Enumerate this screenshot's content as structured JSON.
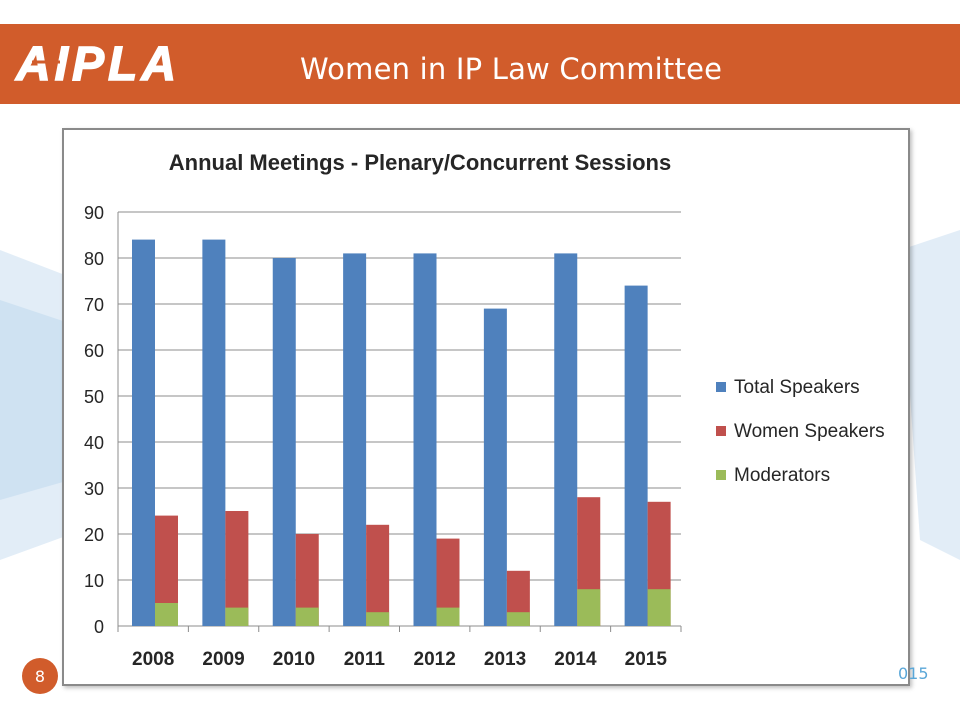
{
  "header": {
    "logo_text": "AIPLA",
    "title": "Women in IP Law Committee"
  },
  "footer": {
    "page_number": "8",
    "year_fragment": "015"
  },
  "colors": {
    "header_bg": "#d15c2b",
    "total_speakers": "#4f81bd",
    "women_speakers": "#c0504d",
    "moderators": "#9bbb59"
  },
  "chart_data": {
    "type": "bar",
    "title": "Annual Meetings - Plenary/Concurrent Sessions",
    "categories": [
      "2008",
      "2009",
      "2010",
      "2011",
      "2012",
      "2013",
      "2014",
      "2015"
    ],
    "series": [
      {
        "name": "Total Speakers",
        "values": [
          84,
          84,
          80,
          81,
          81,
          69,
          81,
          74
        ]
      },
      {
        "name": "Women Speakers",
        "values": [
          24,
          25,
          20,
          22,
          19,
          12,
          28,
          27
        ]
      },
      {
        "name": "Moderators",
        "values": [
          5,
          4,
          4,
          3,
          4,
          3,
          8,
          8
        ]
      }
    ],
    "xlabel": "",
    "ylabel": "",
    "ylim": [
      0,
      90
    ],
    "yticks": [
      "0",
      "10",
      "20",
      "30",
      "40",
      "50",
      "60",
      "70",
      "80",
      "90"
    ],
    "grid": true,
    "legend_position": "right",
    "layout_note": "Women Speakers and Moderators are drawn overlapping in the same slot"
  }
}
